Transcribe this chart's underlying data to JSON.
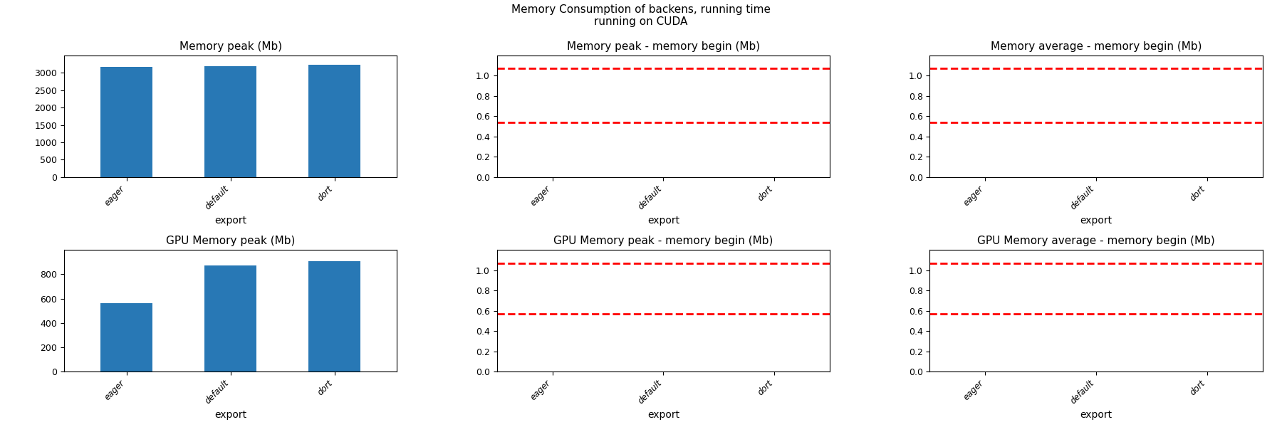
{
  "title": "Memory Consumption of backens, running time\nrunning on CUDA",
  "categories": [
    "eager",
    "default",
    "dort"
  ],
  "xlabel": "export",
  "subplots": [
    {
      "title": "Memory peak (Mb)",
      "type": "bar",
      "values": [
        3175,
        3190,
        3230
      ],
      "ylim": [
        0,
        3500
      ],
      "yticks": [
        0,
        500,
        1000,
        1500,
        2000,
        2500,
        3000
      ],
      "bar_color": "#2878b5"
    },
    {
      "title": "Memory peak - memory begin (Mb)",
      "type": "hlines",
      "hlines": [
        1.07,
        0.54
      ],
      "ylim": [
        0.0,
        1.2
      ],
      "yticks": [
        0.0,
        0.2,
        0.4,
        0.6,
        0.8,
        1.0
      ],
      "line_color": "red",
      "linestyle": "--"
    },
    {
      "title": "Memory average - memory begin (Mb)",
      "type": "hlines",
      "hlines": [
        1.07,
        0.54
      ],
      "ylim": [
        0.0,
        1.2
      ],
      "yticks": [
        0.0,
        0.2,
        0.4,
        0.6,
        0.8,
        1.0
      ],
      "line_color": "red",
      "linestyle": "--"
    },
    {
      "title": "GPU Memory peak (Mb)",
      "type": "bar",
      "values": [
        560,
        870,
        910
      ],
      "ylim": [
        0,
        1000
      ],
      "yticks": [
        0,
        200,
        400,
        600,
        800
      ],
      "bar_color": "#2878b5"
    },
    {
      "title": "GPU Memory peak - memory begin (Mb)",
      "type": "hlines",
      "hlines": [
        1.07,
        0.57
      ],
      "ylim": [
        0.0,
        1.2
      ],
      "yticks": [
        0.0,
        0.2,
        0.4,
        0.6,
        0.8,
        1.0
      ],
      "line_color": "red",
      "linestyle": "--"
    },
    {
      "title": "GPU Memory average - memory begin (Mb)",
      "type": "hlines",
      "hlines": [
        1.07,
        0.57
      ],
      "ylim": [
        0.0,
        1.2
      ],
      "yticks": [
        0.0,
        0.2,
        0.4,
        0.6,
        0.8,
        1.0
      ],
      "line_color": "red",
      "linestyle": "--"
    }
  ],
  "title_fontsize": 11,
  "suptitle_fontsize": 11
}
